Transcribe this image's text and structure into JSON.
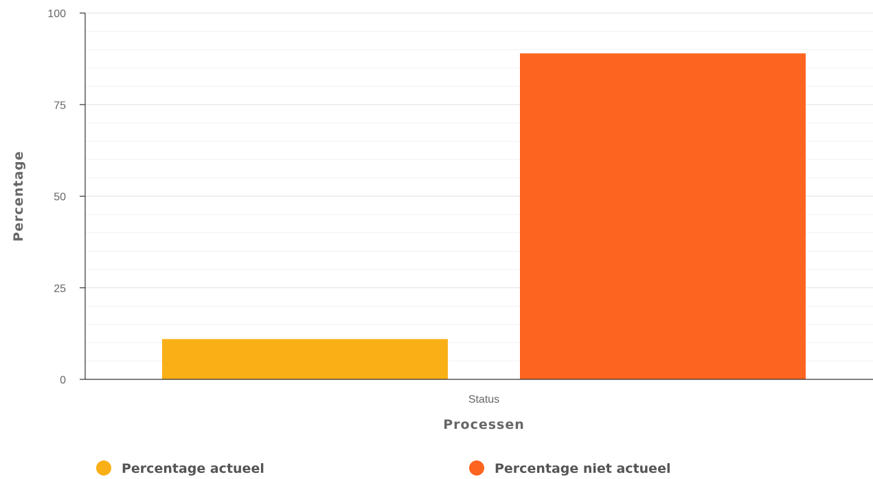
{
  "chart_data": {
    "type": "bar",
    "categories": [
      "Status"
    ],
    "series": [
      {
        "name": "Percentage actueel",
        "values": [
          11
        ],
        "color": "#f9b016"
      },
      {
        "name": "Percentage niet actueel",
        "values": [
          89
        ],
        "color": "#fd6420"
      }
    ],
    "xlabel": "Processen",
    "ylabel": "Percentage",
    "ylim": [
      0,
      100
    ],
    "yticks": [
      0,
      25,
      50,
      75,
      100
    ],
    "minor_grid_step": 5,
    "grid": true,
    "legend_position": "bottom"
  }
}
